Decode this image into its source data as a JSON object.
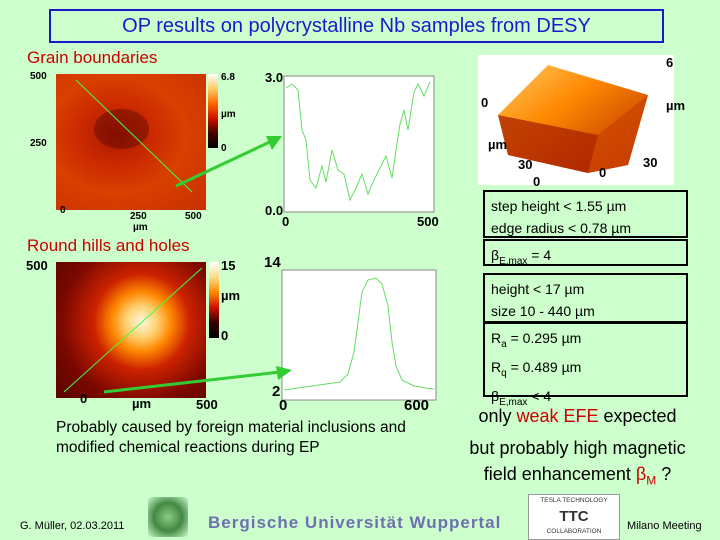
{
  "title": "OP results on polycrystalline Nb samples from DESY",
  "grain": {
    "label": "Grain boundaries",
    "map": {
      "y_top": "500",
      "y_mid": "250",
      "x0": "0",
      "x_mid": "250",
      "x_unit": "µm",
      "x_max": "500",
      "scale_max": "6.8",
      "scale_unit": "µm",
      "scale_min": "0"
    },
    "profile": {
      "y_top": "3.0",
      "y_bottom": "0.0",
      "x_left": "0",
      "x_right": "500"
    },
    "surface3d": {
      "z_max": "6",
      "z0": "0",
      "z_unit": "µm",
      "x_unit": "µm",
      "x_mid": "30",
      "x0": "0",
      "y_mid": "30",
      "y0": "0"
    },
    "info": [
      "step height < 1.55 µm",
      "edge radius < 0.78 µm"
    ]
  },
  "hills": {
    "label": "Round hills and holes",
    "map": {
      "y_top": "500",
      "x0": "0",
      "x_unit": "µm",
      "x_max": "500",
      "scale_max": "15",
      "scale_unit": "µm",
      "scale_min": "0"
    },
    "profile": {
      "y_top": "14",
      "y_bottom": "2",
      "x_left": "0",
      "x_right": "600"
    },
    "beta": {
      "symbol": "β",
      "sub": "E,max",
      "rest": " = 4"
    },
    "size_info": [
      "height < 17 µm",
      "size 10 - 440 µm"
    ],
    "rough": {
      "ra_sym": "R",
      "ra_sub": "a",
      "ra_val": " = 0.295 µm",
      "rq_sym": "R",
      "rq_sub": "q",
      "rq_val": " = 0.489 µm",
      "b_sym": "β",
      "b_sub": "E,max",
      "b_val": " < 4"
    }
  },
  "note": "Probably caused by foreign material inclusions and modified chemical reactions during EP",
  "efe": {
    "pre": "only ",
    "red": "weak EFE",
    "post": " expected",
    "line2": "but probably high magnetic",
    "line3_pre": "field enhancement ",
    "beta_sym": "β",
    "beta_sub": "M",
    "line3_post": " ?"
  },
  "footer": {
    "author": "G. Müller, 02.03.2011",
    "university": "Bergische Universität Wuppertal",
    "tesla": "TESLA TECHNOLOGY",
    "ttc": "TTC",
    "collab": "COLLABORATION",
    "meeting": "Milano Meeting"
  },
  "colors": {
    "title_blue": "#1a1acc",
    "accent_red": "#cc0000",
    "bg": "#ccffcc",
    "arrow_green": "#33cc33"
  }
}
